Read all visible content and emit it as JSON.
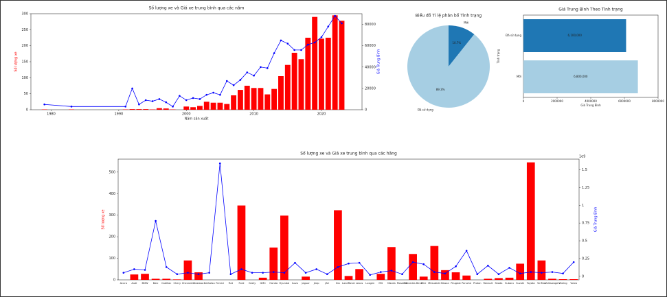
{
  "chart_data": [
    {
      "type": "bar_line",
      "title": "Số lượng xe và Giá xe trung bình qua các năm",
      "xlabel": "Năm sản xuất",
      "ylabel": "Số lượng xe",
      "y2label": "Giá Trung Bình",
      "x": [
        1979,
        1983,
        1991,
        1992,
        1993,
        1994,
        1995,
        1996,
        1997,
        1998,
        1999,
        2000,
        2001,
        2002,
        2003,
        2004,
        2005,
        2006,
        2007,
        2008,
        2009,
        2010,
        2011,
        2012,
        2013,
        2014,
        2015,
        2016,
        2017,
        2018,
        2019,
        2020,
        2021,
        2022,
        2023
      ],
      "series": [
        {
          "color": "#ff0000",
          "values": [
            1,
            1,
            1,
            2,
            2,
            2,
            1,
            5,
            4,
            1,
            0,
            10,
            8,
            12,
            25,
            22,
            22,
            18,
            45,
            62,
            75,
            68,
            68,
            48,
            65,
            105,
            140,
            178,
            158,
            225,
            290,
            222,
            225,
            295,
            278
          ]
        },
        {
          "color": "#0000ff",
          "axis": "y2",
          "values": [
            5000,
            3000,
            3000,
            20000,
            5000,
            9000,
            8000,
            10000,
            7000,
            3000,
            13000,
            9000,
            11000,
            10000,
            14000,
            16000,
            14000,
            27000,
            23000,
            28000,
            35000,
            32000,
            40000,
            39000,
            53000,
            65000,
            62000,
            56000,
            56000,
            61000,
            63000,
            68000,
            78000,
            88000,
            81000
          ]
        }
      ],
      "xlim": [
        1977,
        2026
      ],
      "xticks": [
        1980,
        1990,
        2000,
        2010,
        2020
      ],
      "ylim": [
        0,
        300
      ],
      "yticks": [
        0,
        50,
        100,
        150,
        200,
        250,
        300
      ],
      "y2lim": [
        0,
        90000
      ],
      "y2ticks": [
        0,
        20000,
        40000,
        60000,
        80000
      ]
    },
    {
      "type": "pie",
      "title": "Biểu đồ Tỉ lệ phân bổ Tình trạng",
      "categories": [
        "Mới",
        "Đã sử dụng"
      ],
      "values": [
        10.7,
        89.3
      ],
      "value_labels": [
        "10.7%",
        "89.3%"
      ],
      "colors": [
        "#1f77b4",
        "#a6cee3"
      ]
    },
    {
      "type": "barh",
      "title": "Giá Trung Bình Theo Tình trạng",
      "xlabel": "Giá Trung Bình",
      "ylabel": "Tình trạng",
      "categories": [
        "Đã sử dụng",
        "Mới"
      ],
      "values": [
        6100000,
        6800000
      ],
      "value_labels": [
        "6,100,000",
        "6,800,000"
      ],
      "colors": [
        "#1f77b4",
        "#a6cee3"
      ],
      "xlim": [
        0,
        8000000
      ],
      "xticks": [
        0,
        2000000,
        4000000,
        6000000,
        8000000
      ]
    },
    {
      "type": "bar_line",
      "title": "Số lượng xe và Giá xe trung bình qua các hãng",
      "ylabel": "Số lượng xe",
      "y2label": "Giá Trung Bình",
      "y2_offset": "1e9",
      "categories": [
        "Acura",
        "Audi",
        "BMW",
        "Baic",
        "Cadillac",
        "Chery",
        "Chevrolet",
        "Daewoo",
        "Daihatsu",
        "Ferrari",
        "Fiat",
        "Ford",
        "Geely",
        "GMC",
        "Honda",
        "Hyundai",
        "Isuzu",
        "Jaguar",
        "Jeep",
        "JAC",
        "Kia",
        "LandRover",
        "Lexus",
        "Luxgen",
        "MG",
        "Mazda",
        "Maserati",
        "Mercedes Benz",
        "Mini",
        "Mitsubishi",
        "Nissan",
        "Peugeot",
        "Porsche",
        "Proton",
        "Renault",
        "Skoda",
        "Subaru",
        "Suzuki",
        "Toyota",
        "VinFast",
        "Volkswagen",
        "Wuling",
        "Volvo"
      ],
      "series": [
        {
          "color": "#ff0000",
          "values": [
            0,
            25,
            28,
            5,
            5,
            2,
            90,
            35,
            0,
            0,
            0,
            345,
            0,
            10,
            150,
            298,
            0,
            15,
            0,
            0,
            323,
            18,
            50,
            0,
            28,
            152,
            0,
            120,
            15,
            157,
            45,
            35,
            20,
            0,
            5,
            8,
            10,
            75,
            545,
            90,
            5,
            3,
            3
          ]
        },
        {
          "color": "#0000ff",
          "axis": "y2",
          "values": [
            0.05,
            0.1,
            0.09,
            0.78,
            0.13,
            0.03,
            0.05,
            0.03,
            0.05,
            1.59,
            0.03,
            0.1,
            0.05,
            0.05,
            0.06,
            0.05,
            0.19,
            0.05,
            0.1,
            0.03,
            0.13,
            0.18,
            0.19,
            0.02,
            0.06,
            0.08,
            0.03,
            0.2,
            0.17,
            0.06,
            0.04,
            0.14,
            0.36,
            0.03,
            0.15,
            0.03,
            0.12,
            0.04,
            0.06,
            0.05,
            0.06,
            0.04,
            0.2
          ]
        }
      ],
      "ylim": [
        0,
        560
      ],
      "yticks": [
        0,
        100,
        200,
        300,
        400,
        500
      ],
      "y2lim": [
        -0.05,
        1.65
      ],
      "y2ticks": [
        0,
        0.25,
        0.5,
        0.75,
        1,
        1.25,
        1.5
      ]
    }
  ]
}
